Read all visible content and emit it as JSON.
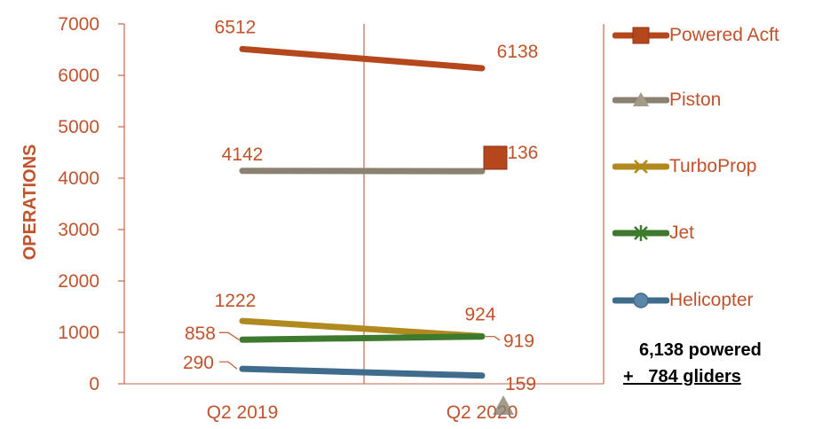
{
  "chart_data": {
    "type": "line",
    "title": "",
    "ylabel": "OPERATIONS",
    "xlabel": "",
    "categories": [
      "Q2 2019",
      "Q2 2020"
    ],
    "ylim": [
      0,
      7000
    ],
    "yticks": [
      "0",
      "1000",
      "2000",
      "3000",
      "4000",
      "5000",
      "6000",
      "7000"
    ],
    "grid": "vertical",
    "legend_position": "right",
    "series": [
      {
        "name": "Powered Acft",
        "values": [
          6512,
          6138
        ],
        "labels": [
          "6512",
          "6138"
        ],
        "color": "#B5471D",
        "marker": "square"
      },
      {
        "name": "Piston",
        "values": [
          4142,
          4136
        ],
        "labels": [
          "4142",
          "4136"
        ],
        "color": "#8A8170",
        "marker": "triangle"
      },
      {
        "name": "TurboProp",
        "values": [
          1222,
          924
        ],
        "labels": [
          "1222",
          "924"
        ],
        "color": "#B08A1E",
        "marker": "x"
      },
      {
        "name": "Jet",
        "values": [
          858,
          919
        ],
        "labels": [
          "858",
          "919"
        ],
        "color": "#3E7A2E",
        "marker": "star"
      },
      {
        "name": "Helicopter",
        "values": [
          290,
          159
        ],
        "labels": [
          "290",
          "159"
        ],
        "color": "#3F6B8C",
        "marker": "circle"
      }
    ]
  },
  "notes": {
    "line1": "6,138 powered",
    "line2": "+   784 gliders"
  },
  "colors": {
    "axis_text": "#C0532B",
    "gridline": "#C8664A"
  }
}
